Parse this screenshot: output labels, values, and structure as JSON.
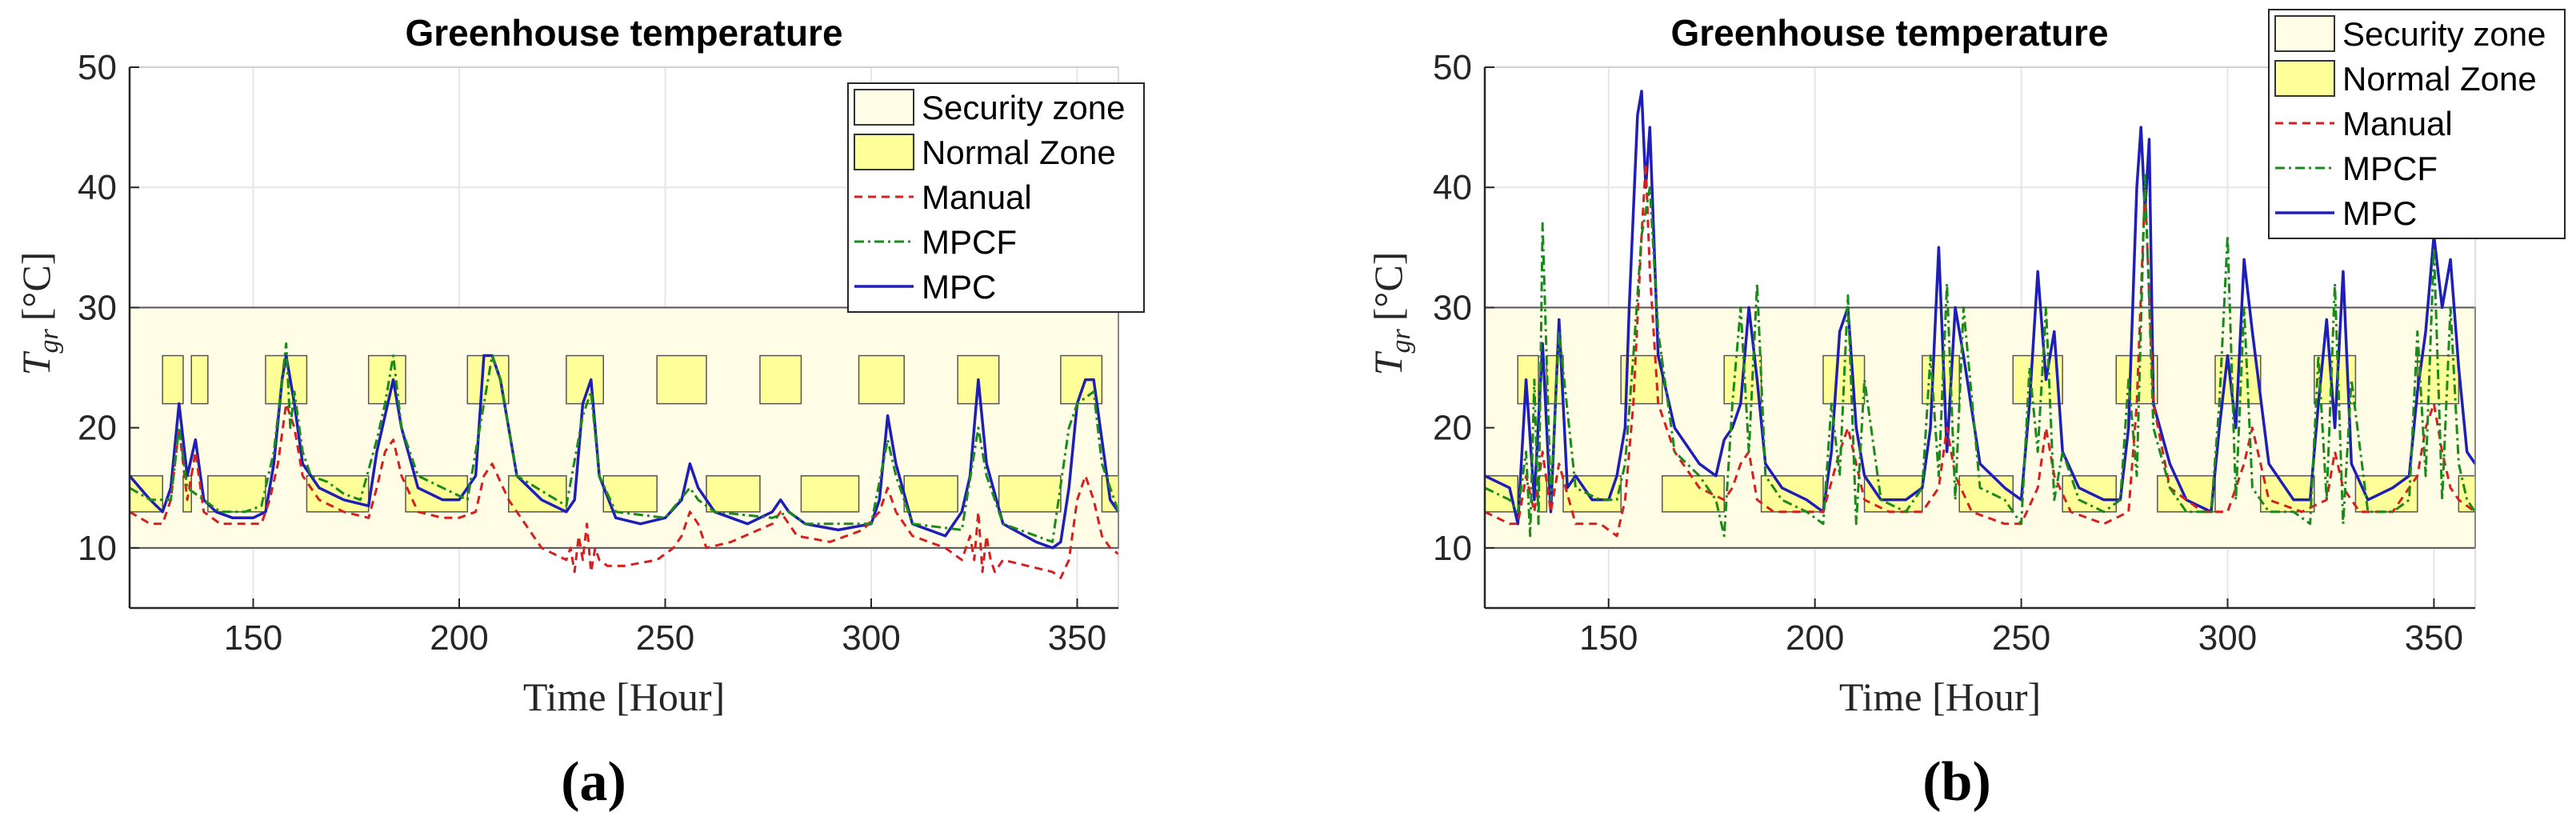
{
  "colors": {
    "security_zone": "#fffde6",
    "normal_zone": "#ffff99",
    "manual": "#d62020",
    "mpcf": "#1a8a1a",
    "mpc": "#1f1fb8",
    "axis": "#262626"
  },
  "chart_data": [
    {
      "type": "line",
      "title": "Greenhouse temperature",
      "panel_label": "(a)",
      "xlabel": "Time [Hour]",
      "ylabel_base": "T",
      "ylabel_sub": "gr",
      "ylabel_unit": "[°C]",
      "xlim": [
        120,
        360
      ],
      "ylim": [
        5,
        50
      ],
      "xticks": [
        150,
        200,
        250,
        300,
        350
      ],
      "yticks": [
        10,
        20,
        30,
        40,
        50
      ],
      "grid": true,
      "legend_position": "top-right",
      "legend": [
        "Security zone",
        "Normal Zone",
        "Manual",
        "MPCF",
        "MPC"
      ],
      "security_zone": {
        "y": [
          10,
          30
        ]
      },
      "normal_zone": {
        "day": [
          22,
          26
        ],
        "night": [
          13,
          16
        ],
        "day_windows": [
          [
            128,
            133
          ],
          [
            135,
            139
          ],
          [
            153,
            163
          ],
          [
            178,
            187
          ],
          [
            202,
            212
          ],
          [
            226,
            235
          ],
          [
            248,
            260
          ],
          [
            273,
            283
          ],
          [
            297,
            308
          ],
          [
            321,
            331
          ],
          [
            346,
            356
          ]
        ]
      },
      "series": [
        {
          "name": "MPC",
          "x": [
            120,
            125,
            128,
            130,
            132,
            134,
            136,
            138,
            141,
            145,
            150,
            153,
            155,
            157,
            158,
            160,
            162,
            166,
            172,
            178,
            180,
            182,
            184,
            186,
            190,
            196,
            200,
            204,
            206,
            208,
            210,
            214,
            220,
            226,
            228,
            230,
            232,
            234,
            238,
            244,
            250,
            254,
            256,
            258,
            262,
            270,
            276,
            278,
            280,
            284,
            292,
            300,
            302,
            304,
            306,
            310,
            318,
            322,
            324,
            326,
            328,
            332,
            340,
            344,
            346,
            348,
            350,
            352,
            354,
            356,
            358,
            360
          ],
          "y": [
            16,
            14,
            13,
            15,
            22,
            16,
            19,
            14,
            13,
            12.5,
            12.5,
            13,
            17,
            24,
            26,
            22,
            17,
            15,
            14,
            13.5,
            18,
            21,
            24,
            20,
            15,
            14,
            14,
            16,
            26,
            26,
            24,
            16,
            14,
            13,
            14,
            22,
            24,
            16,
            12.5,
            12,
            12.5,
            14,
            17,
            15,
            13,
            12,
            13,
            14,
            13,
            12,
            11.5,
            12,
            14,
            21,
            17,
            12,
            11,
            13,
            16,
            24,
            17,
            12,
            10.5,
            10,
            10.5,
            15,
            22,
            24,
            24,
            19,
            14,
            13
          ]
        },
        {
          "name": "Manual",
          "x": [
            120,
            125,
            128,
            130,
            132,
            134,
            136,
            138,
            142,
            148,
            152,
            154,
            156,
            158,
            160,
            162,
            166,
            172,
            178,
            180,
            182,
            184,
            186,
            190,
            196,
            200,
            204,
            206,
            208,
            212,
            220,
            226,
            227,
            228,
            229,
            230,
            231,
            232,
            233,
            234,
            236,
            240,
            248,
            252,
            254,
            256,
            258,
            260,
            266,
            276,
            278,
            282,
            290,
            298,
            302,
            304,
            306,
            310,
            318,
            322,
            324,
            325,
            326,
            327,
            328,
            329,
            330,
            332,
            338,
            344,
            346,
            348,
            350,
            352,
            354,
            356,
            358,
            360
          ],
          "y": [
            13,
            12,
            12,
            14,
            20,
            14,
            18,
            13,
            12,
            12,
            12,
            14,
            17,
            22,
            20,
            16,
            14,
            13,
            12.5,
            15,
            18,
            19,
            16,
            13,
            12.5,
            12.5,
            13,
            16,
            17,
            14,
            10,
            9,
            10,
            8,
            11,
            9,
            12,
            8,
            10,
            9,
            8.5,
            8.5,
            9,
            10,
            11,
            13,
            12,
            10,
            10.5,
            12,
            13,
            11,
            10.5,
            11.5,
            13,
            15,
            13,
            11,
            10,
            9,
            11,
            9,
            13,
            8,
            11,
            9,
            8,
            9,
            8.5,
            8,
            7.5,
            9,
            14,
            16,
            14,
            11,
            10,
            9.5
          ]
        },
        {
          "name": "MPCF",
          "x": [
            120,
            125,
            130,
            132,
            134,
            138,
            142,
            148,
            152,
            155,
            157,
            158,
            159,
            160,
            162,
            164,
            168,
            172,
            176,
            180,
            182,
            184,
            186,
            190,
            196,
            202,
            206,
            208,
            210,
            214,
            226,
            230,
            232,
            234,
            238,
            250,
            256,
            258,
            262,
            276,
            280,
            284,
            300,
            304,
            306,
            310,
            322,
            326,
            328,
            332,
            344,
            348,
            350,
            354,
            356,
            360
          ],
          "y": [
            15,
            14,
            14,
            20,
            15,
            14,
            13,
            13,
            13.5,
            18,
            24,
            27,
            20,
            23,
            18,
            16,
            15.5,
            14.5,
            14,
            19,
            22,
            26,
            20,
            16,
            15,
            14,
            22,
            26,
            24,
            16,
            13.5,
            21,
            23,
            16,
            13,
            12.5,
            15,
            14,
            13,
            12.5,
            13,
            12,
            12,
            19,
            16,
            12,
            11.5,
            20,
            16,
            12,
            10.5,
            20,
            22,
            23,
            17,
            13
          ]
        }
      ]
    },
    {
      "type": "line",
      "title": "Greenhouse temperature",
      "panel_label": "(b)",
      "xlabel": "Time [Hour]",
      "ylabel_base": "T",
      "ylabel_sub": "gr",
      "ylabel_unit": "[°C]",
      "xlim": [
        120,
        360
      ],
      "ylim": [
        5,
        50
      ],
      "xticks": [
        150,
        200,
        250,
        300,
        350
      ],
      "yticks": [
        10,
        20,
        30,
        40,
        50
      ],
      "grid": true,
      "legend_position": "top-right",
      "legend": [
        "Security zone",
        "Normal Zone",
        "Manual",
        "MPCF",
        "MPC"
      ],
      "security_zone": {
        "y": [
          10,
          30
        ]
      },
      "normal_zone": {
        "day": [
          22,
          26
        ],
        "night": [
          13,
          16
        ],
        "day_windows": [
          [
            128,
            133
          ],
          [
            135,
            139
          ],
          [
            153,
            163
          ],
          [
            178,
            187
          ],
          [
            202,
            212
          ],
          [
            226,
            235
          ],
          [
            248,
            260
          ],
          [
            273,
            283
          ],
          [
            297,
            308
          ],
          [
            321,
            331
          ],
          [
            346,
            356
          ]
        ]
      },
      "series": [
        {
          "name": "MPC",
          "x": [
            120,
            126,
            128,
            130,
            132,
            134,
            136,
            138,
            140,
            142,
            146,
            150,
            152,
            154,
            155,
            156,
            157,
            158,
            159,
            160,
            162,
            166,
            172,
            176,
            178,
            180,
            182,
            184,
            186,
            188,
            192,
            198,
            202,
            204,
            206,
            208,
            210,
            212,
            216,
            222,
            226,
            228,
            230,
            232,
            234,
            236,
            240,
            246,
            250,
            252,
            254,
            256,
            258,
            260,
            264,
            270,
            274,
            276,
            278,
            279,
            280,
            281,
            282,
            286,
            290,
            296,
            298,
            300,
            302,
            304,
            306,
            310,
            316,
            320,
            322,
            324,
            326,
            328,
            330,
            334,
            340,
            344,
            346,
            348,
            350,
            352,
            354,
            356,
            358,
            360
          ],
          "y": [
            16,
            15,
            12,
            24,
            14,
            27,
            13,
            29,
            15,
            16,
            14,
            14,
            16,
            20,
            30,
            38,
            46,
            48,
            40,
            45,
            26,
            20,
            17,
            16,
            19,
            20,
            22,
            30,
            24,
            17,
            15,
            14,
            13,
            18,
            28,
            30,
            20,
            16,
            14,
            14,
            15,
            20,
            35,
            18,
            30,
            26,
            17,
            15,
            14,
            22,
            33,
            24,
            28,
            18,
            15,
            14,
            14,
            20,
            40,
            45,
            38,
            44,
            22,
            17,
            14,
            13,
            20,
            26,
            20,
            34,
            28,
            17,
            14,
            14,
            22,
            29,
            20,
            33,
            17,
            14,
            15,
            16,
            23,
            28,
            36,
            30,
            34,
            25,
            18,
            17
          ]
        },
        {
          "name": "Manual",
          "x": [
            120,
            126,
            128,
            130,
            132,
            134,
            136,
            138,
            142,
            148,
            152,
            154,
            156,
            158,
            159,
            160,
            162,
            166,
            172,
            178,
            180,
            182,
            184,
            186,
            190,
            196,
            202,
            206,
            208,
            212,
            218,
            226,
            230,
            232,
            234,
            238,
            246,
            250,
            254,
            256,
            258,
            262,
            270,
            276,
            278,
            280,
            282,
            286,
            294,
            300,
            304,
            306,
            310,
            318,
            324,
            326,
            328,
            332,
            340,
            346,
            348,
            350,
            352,
            354,
            356,
            360
          ],
          "y": [
            13,
            12,
            12,
            16,
            13,
            18,
            13,
            17,
            12,
            12,
            11,
            14,
            22,
            36,
            42,
            33,
            22,
            18,
            15,
            14,
            15,
            17,
            18,
            14,
            13,
            13,
            13,
            18,
            20,
            14,
            13,
            13,
            15,
            20,
            16,
            13,
            12,
            12,
            15,
            20,
            16,
            13,
            12,
            13,
            22,
            40,
            22,
            15,
            13,
            13,
            17,
            20,
            14,
            13,
            14,
            18,
            15,
            13,
            13,
            16,
            20,
            22,
            18,
            15,
            14,
            13
          ]
        },
        {
          "name": "MPCF",
          "x": [
            120,
            126,
            128,
            130,
            131,
            132,
            133,
            134,
            136,
            138,
            142,
            148,
            152,
            154,
            156,
            158,
            160,
            162,
            166,
            172,
            176,
            178,
            180,
            182,
            184,
            186,
            188,
            192,
            198,
            202,
            204,
            206,
            208,
            210,
            212,
            216,
            222,
            226,
            228,
            230,
            232,
            234,
            236,
            240,
            246,
            250,
            252,
            254,
            256,
            258,
            260,
            264,
            270,
            274,
            276,
            278,
            280,
            282,
            286,
            290,
            296,
            298,
            300,
            302,
            304,
            306,
            310,
            316,
            320,
            322,
            324,
            326,
            328,
            330,
            334,
            340,
            344,
            346,
            348,
            350,
            352,
            354,
            356,
            358,
            360
          ],
          "y": [
            15,
            14,
            13,
            18,
            11,
            24,
            12,
            37,
            14,
            28,
            15,
            14,
            14,
            17,
            26,
            36,
            40,
            28,
            18,
            16,
            14,
            11,
            22,
            30,
            18,
            32,
            16,
            14,
            13,
            12,
            22,
            16,
            31,
            12,
            24,
            14,
            13,
            15,
            26,
            16,
            32,
            14,
            30,
            15,
            14,
            12,
            25,
            18,
            30,
            14,
            18,
            14,
            13,
            14,
            24,
            16,
            41,
            20,
            15,
            13,
            13,
            22,
            36,
            14,
            30,
            15,
            13,
            13,
            12,
            26,
            14,
            32,
            12,
            24,
            13,
            13,
            14,
            28,
            16,
            35,
            14,
            30,
            17,
            14,
            13
          ]
        }
      ]
    }
  ]
}
